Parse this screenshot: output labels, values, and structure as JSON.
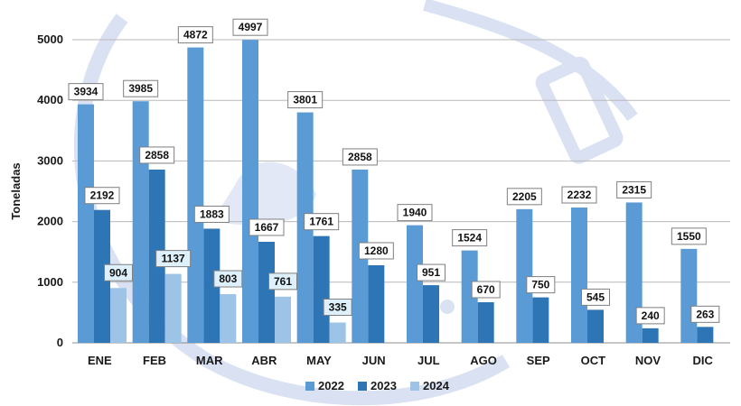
{
  "chart_data": {
    "type": "bar",
    "title": "",
    "xlabel": "",
    "ylabel": "Toneladas",
    "ylim": [
      0,
      5000
    ],
    "yticks": [
      0,
      1000,
      2000,
      3000,
      4000,
      5000
    ],
    "grid": true,
    "legend_position": "bottom",
    "categories": [
      "ENE",
      "FEB",
      "MAR",
      "ABR",
      "MAY",
      "JUN",
      "JUL",
      "AGO",
      "SEP",
      "OCT",
      "NOV",
      "DIC"
    ],
    "series": [
      {
        "name": "2022",
        "color": "#5b9bd5",
        "values": [
          3934,
          3985,
          4872,
          4997,
          3801,
          2858,
          1940,
          1524,
          2205,
          2232,
          2315,
          1550
        ]
      },
      {
        "name": "2023",
        "color": "#2e75b6",
        "values": [
          2192,
          2858,
          1883,
          1667,
          1761,
          1280,
          951,
          670,
          750,
          545,
          240,
          263
        ]
      },
      {
        "name": "2024",
        "color": "#9dc3e6",
        "values": [
          904,
          1137,
          803,
          761,
          335,
          null,
          null,
          null,
          null,
          null,
          null,
          null
        ]
      }
    ]
  }
}
